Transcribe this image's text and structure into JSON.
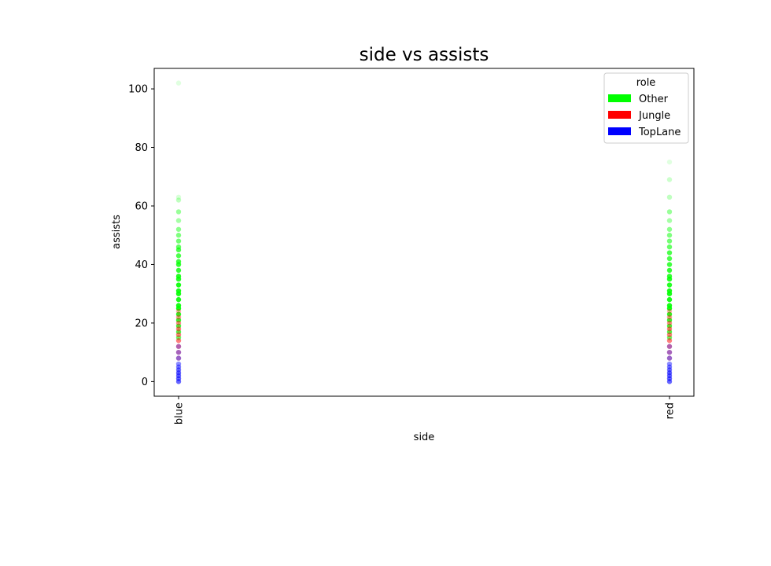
{
  "chart_data": {
    "type": "scatter",
    "title": "side vs assists",
    "xlabel": "side",
    "ylabel": "assists",
    "categories": [
      "blue",
      "red"
    ],
    "ylim": [
      -5,
      107
    ],
    "yticks": [
      0,
      20,
      40,
      60,
      80,
      100
    ],
    "xtick_rotation": "vertical",
    "grid": false,
    "legend": {
      "title": "role",
      "placement": "top-right",
      "entries": [
        {
          "label": "Other",
          "color": "#00ff00"
        },
        {
          "label": "Jungle",
          "color": "#ff0000"
        },
        {
          "label": "TopLane",
          "color": "#0000ff"
        }
      ]
    },
    "series": [
      {
        "name": "Other",
        "color": "#00ff00",
        "points": [
          {
            "x": "blue",
            "y": 102,
            "alpha": 0.12
          },
          {
            "x": "blue",
            "y": 63,
            "alpha": 0.15
          },
          {
            "x": "blue",
            "y": 62,
            "alpha": 0.25
          },
          {
            "x": "blue",
            "y": 58,
            "alpha": 0.4
          },
          {
            "x": "blue",
            "y": 55,
            "alpha": 0.35
          },
          {
            "x": "blue",
            "y": 52,
            "alpha": 0.45
          },
          {
            "x": "blue",
            "y": 50,
            "alpha": 0.5
          },
          {
            "x": "blue",
            "y": 48,
            "alpha": 0.55
          },
          {
            "x": "blue",
            "y": 46,
            "alpha": 0.6
          },
          {
            "x": "blue",
            "y": 45,
            "alpha": 0.7
          },
          {
            "x": "blue",
            "y": 43,
            "alpha": 0.7
          },
          {
            "x": "blue",
            "y": 41,
            "alpha": 0.75
          },
          {
            "x": "blue",
            "y": 40,
            "alpha": 0.8
          },
          {
            "x": "blue",
            "y": 38,
            "alpha": 0.8
          },
          {
            "x": "blue",
            "y": 36,
            "alpha": 0.85
          },
          {
            "x": "blue",
            "y": 35,
            "alpha": 0.85
          },
          {
            "x": "blue",
            "y": 33,
            "alpha": 0.9
          },
          {
            "x": "blue",
            "y": 31,
            "alpha": 0.9
          },
          {
            "x": "blue",
            "y": 30,
            "alpha": 0.9
          },
          {
            "x": "blue",
            "y": 28,
            "alpha": 0.9
          },
          {
            "x": "blue",
            "y": 26,
            "alpha": 0.9
          },
          {
            "x": "blue",
            "y": 25,
            "alpha": 0.9
          },
          {
            "x": "blue",
            "y": 23,
            "alpha": 0.85
          },
          {
            "x": "blue",
            "y": 21,
            "alpha": 0.8
          },
          {
            "x": "blue",
            "y": 19,
            "alpha": 0.75
          },
          {
            "x": "blue",
            "y": 17,
            "alpha": 0.7
          },
          {
            "x": "blue",
            "y": 15,
            "alpha": 0.6
          },
          {
            "x": "red",
            "y": 75,
            "alpha": 0.12
          },
          {
            "x": "red",
            "y": 69,
            "alpha": 0.2
          },
          {
            "x": "red",
            "y": 63,
            "alpha": 0.25
          },
          {
            "x": "red",
            "y": 58,
            "alpha": 0.4
          },
          {
            "x": "red",
            "y": 55,
            "alpha": 0.35
          },
          {
            "x": "red",
            "y": 52,
            "alpha": 0.45
          },
          {
            "x": "red",
            "y": 50,
            "alpha": 0.5
          },
          {
            "x": "red",
            "y": 48,
            "alpha": 0.55
          },
          {
            "x": "red",
            "y": 46,
            "alpha": 0.6
          },
          {
            "x": "red",
            "y": 44,
            "alpha": 0.7
          },
          {
            "x": "red",
            "y": 42,
            "alpha": 0.7
          },
          {
            "x": "red",
            "y": 40,
            "alpha": 0.75
          },
          {
            "x": "red",
            "y": 38,
            "alpha": 0.8
          },
          {
            "x": "red",
            "y": 36,
            "alpha": 0.8
          },
          {
            "x": "red",
            "y": 35,
            "alpha": 0.85
          },
          {
            "x": "red",
            "y": 33,
            "alpha": 0.85
          },
          {
            "x": "red",
            "y": 31,
            "alpha": 0.9
          },
          {
            "x": "red",
            "y": 30,
            "alpha": 0.9
          },
          {
            "x": "red",
            "y": 28,
            "alpha": 0.9
          },
          {
            "x": "red",
            "y": 26,
            "alpha": 0.9
          },
          {
            "x": "red",
            "y": 25,
            "alpha": 0.9
          },
          {
            "x": "red",
            "y": 23,
            "alpha": 0.85
          },
          {
            "x": "red",
            "y": 21,
            "alpha": 0.8
          },
          {
            "x": "red",
            "y": 19,
            "alpha": 0.75
          },
          {
            "x": "red",
            "y": 17,
            "alpha": 0.7
          },
          {
            "x": "red",
            "y": 15,
            "alpha": 0.6
          }
        ]
      },
      {
        "name": "Jungle",
        "color": "#ff0000",
        "points": [
          {
            "x": "blue",
            "y": 24,
            "alpha": 0.3
          },
          {
            "x": "blue",
            "y": 22,
            "alpha": 0.4
          },
          {
            "x": "blue",
            "y": 20,
            "alpha": 0.45
          },
          {
            "x": "blue",
            "y": 18,
            "alpha": 0.5
          },
          {
            "x": "blue",
            "y": 16,
            "alpha": 0.5
          },
          {
            "x": "blue",
            "y": 14,
            "alpha": 0.5
          },
          {
            "x": "blue",
            "y": 12,
            "alpha": 0.45
          },
          {
            "x": "blue",
            "y": 10,
            "alpha": 0.4
          },
          {
            "x": "blue",
            "y": 8,
            "alpha": 0.35
          },
          {
            "x": "red",
            "y": 24,
            "alpha": 0.3
          },
          {
            "x": "red",
            "y": 22,
            "alpha": 0.4
          },
          {
            "x": "red",
            "y": 20,
            "alpha": 0.45
          },
          {
            "x": "red",
            "y": 18,
            "alpha": 0.5
          },
          {
            "x": "red",
            "y": 16,
            "alpha": 0.5
          },
          {
            "x": "red",
            "y": 14,
            "alpha": 0.5
          },
          {
            "x": "red",
            "y": 12,
            "alpha": 0.45
          },
          {
            "x": "red",
            "y": 10,
            "alpha": 0.4
          },
          {
            "x": "red",
            "y": 8,
            "alpha": 0.35
          }
        ]
      },
      {
        "name": "TopLane",
        "color": "#0000ff",
        "points": [
          {
            "x": "blue",
            "y": 12,
            "alpha": 0.3
          },
          {
            "x": "blue",
            "y": 10,
            "alpha": 0.35
          },
          {
            "x": "blue",
            "y": 8,
            "alpha": 0.4
          },
          {
            "x": "blue",
            "y": 6,
            "alpha": 0.45
          },
          {
            "x": "blue",
            "y": 5,
            "alpha": 0.5
          },
          {
            "x": "blue",
            "y": 4,
            "alpha": 0.55
          },
          {
            "x": "blue",
            "y": 3,
            "alpha": 0.6
          },
          {
            "x": "blue",
            "y": 2,
            "alpha": 0.6
          },
          {
            "x": "blue",
            "y": 1,
            "alpha": 0.6
          },
          {
            "x": "blue",
            "y": 0,
            "alpha": 0.6
          },
          {
            "x": "red",
            "y": 12,
            "alpha": 0.3
          },
          {
            "x": "red",
            "y": 10,
            "alpha": 0.35
          },
          {
            "x": "red",
            "y": 8,
            "alpha": 0.4
          },
          {
            "x": "red",
            "y": 6,
            "alpha": 0.45
          },
          {
            "x": "red",
            "y": 5,
            "alpha": 0.5
          },
          {
            "x": "red",
            "y": 4,
            "alpha": 0.55
          },
          {
            "x": "red",
            "y": 3,
            "alpha": 0.6
          },
          {
            "x": "red",
            "y": 2,
            "alpha": 0.6
          },
          {
            "x": "red",
            "y": 1,
            "alpha": 0.6
          },
          {
            "x": "red",
            "y": 0,
            "alpha": 0.6
          }
        ]
      }
    ]
  }
}
